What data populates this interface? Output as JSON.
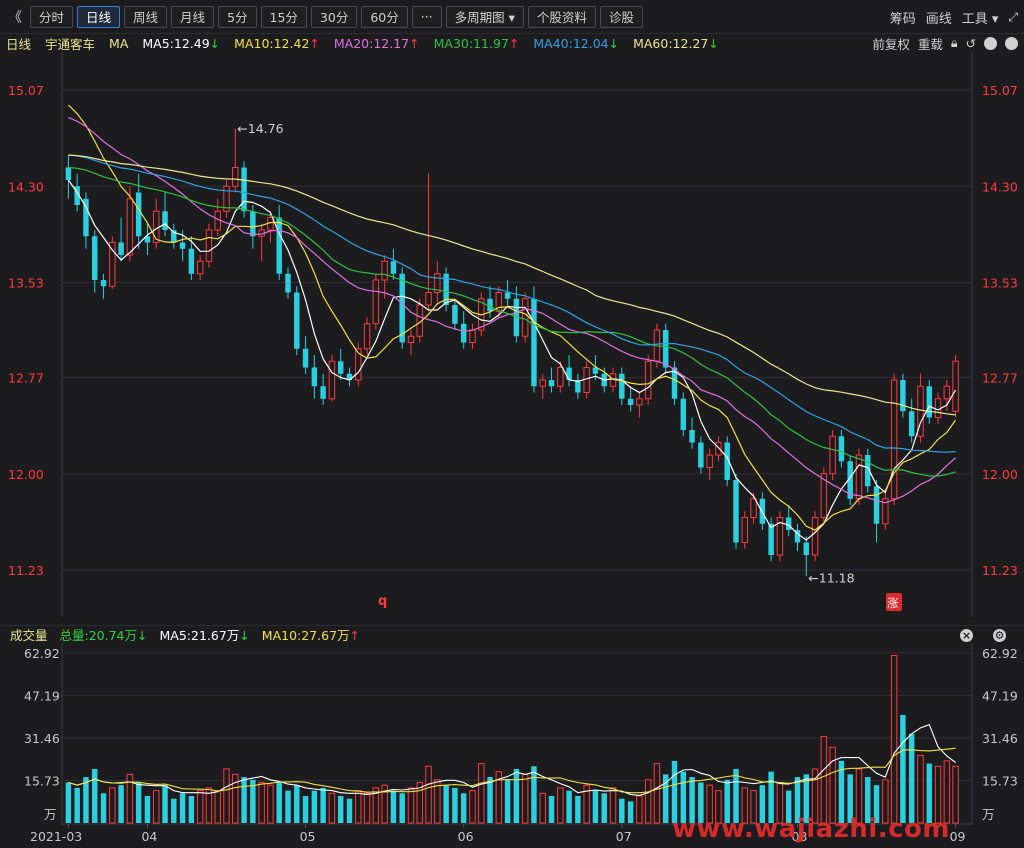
{
  "toolbar": {
    "back": "《",
    "tabs": [
      "分时",
      "日线",
      "周线",
      "月线",
      "5分",
      "15分",
      "30分",
      "60分",
      "···",
      "多周期图 ▾",
      "个股资料",
      "诊股"
    ],
    "active_tab": "日线",
    "right": [
      "筹码",
      "画线",
      "工具 ▾"
    ]
  },
  "info": {
    "period": "日线",
    "stock_name": "宇通客车",
    "indicator": "MA",
    "ma5": "MA5:12.49",
    "ma10": "MA10:12.42",
    "ma20": "MA20:12.17",
    "ma30": "MA30:11.97",
    "ma40": "MA40:12.04",
    "ma60": "MA60:12.27",
    "adjust": "前复权",
    "reload": "重载"
  },
  "volume_info": {
    "label": "成交量",
    "total": "总量:20.74万",
    "ma5": "MA5:21.67万",
    "ma10": "MA10:27.67万"
  },
  "colors": {
    "up": "#ff3a3a",
    "down": "#2ad0e0",
    "ma5": "#ffffff",
    "ma10": "#f0e040",
    "ma20": "#e070e0",
    "ma30": "#30c040",
    "ma40": "#30a0e0",
    "ma60": "#e8e890"
  },
  "chart_data": {
    "type": "candlestick",
    "price_ticks": [
      "15.07",
      "14.30",
      "13.53",
      "12.77",
      "12.00",
      "11.23"
    ],
    "volume_ticks": [
      "62.92",
      "47.19",
      "31.46",
      "15.73"
    ],
    "volume_unit": "万",
    "x_labels": [
      "2021-03",
      "04",
      "05",
      "06",
      "07",
      "08",
      "09"
    ],
    "high_marker": "14.76",
    "low_marker": "11.18",
    "price_range": [
      11.23,
      15.07
    ],
    "volume_range": [
      0,
      62.92
    ],
    "candles": [
      [
        14.45,
        14.55,
        14.2,
        14.35,
        15
      ],
      [
        14.3,
        14.4,
        14.1,
        14.15,
        13
      ],
      [
        14.2,
        14.25,
        13.8,
        13.9,
        17
      ],
      [
        13.9,
        13.95,
        13.45,
        13.55,
        20
      ],
      [
        13.55,
        13.6,
        13.4,
        13.5,
        11
      ],
      [
        13.5,
        13.9,
        13.48,
        13.85,
        13
      ],
      [
        13.85,
        14.05,
        13.7,
        13.75,
        14
      ],
      [
        13.75,
        14.3,
        13.7,
        14.2,
        18
      ],
      [
        14.25,
        14.4,
        13.8,
        13.9,
        15
      ],
      [
        13.9,
        14.0,
        13.75,
        13.85,
        10
      ],
      [
        13.85,
        14.2,
        13.8,
        14.1,
        12
      ],
      [
        14.1,
        14.25,
        13.9,
        13.95,
        14
      ],
      [
        13.95,
        14.0,
        13.8,
        13.85,
        9
      ],
      [
        13.85,
        13.95,
        13.7,
        13.8,
        11
      ],
      [
        13.8,
        13.9,
        13.55,
        13.6,
        10
      ],
      [
        13.6,
        13.75,
        13.55,
        13.7,
        12
      ],
      [
        13.7,
        14.0,
        13.65,
        13.95,
        13
      ],
      [
        13.95,
        14.2,
        13.9,
        14.1,
        12
      ],
      [
        14.1,
        14.35,
        14.05,
        14.3,
        20
      ],
      [
        14.3,
        14.76,
        14.25,
        14.45,
        18
      ],
      [
        14.45,
        14.5,
        14.05,
        14.1,
        17
      ],
      [
        14.1,
        14.15,
        13.8,
        13.9,
        16
      ],
      [
        13.9,
        14.0,
        13.7,
        13.95,
        15
      ],
      [
        13.95,
        14.1,
        13.85,
        14.05,
        14
      ],
      [
        14.05,
        14.15,
        13.55,
        13.6,
        15
      ],
      [
        13.6,
        13.65,
        13.4,
        13.45,
        12
      ],
      [
        13.45,
        13.5,
        12.95,
        13.0,
        14
      ],
      [
        13.0,
        13.1,
        12.8,
        12.85,
        10
      ],
      [
        12.85,
        12.95,
        12.6,
        12.7,
        12
      ],
      [
        12.7,
        12.8,
        12.55,
        12.6,
        13
      ],
      [
        12.6,
        12.95,
        12.58,
        12.9,
        11
      ],
      [
        12.9,
        13.0,
        12.75,
        12.8,
        10
      ],
      [
        12.8,
        12.85,
        12.7,
        12.75,
        9
      ],
      [
        12.75,
        13.05,
        12.7,
        13.0,
        12
      ],
      [
        13.0,
        13.25,
        12.95,
        13.2,
        11
      ],
      [
        13.2,
        13.6,
        13.15,
        13.55,
        13
      ],
      [
        13.55,
        13.75,
        13.4,
        13.7,
        14
      ],
      [
        13.7,
        13.8,
        13.55,
        13.6,
        12
      ],
      [
        13.6,
        13.65,
        13.0,
        13.05,
        11
      ],
      [
        13.05,
        13.15,
        12.95,
        13.1,
        13
      ],
      [
        13.1,
        13.4,
        13.05,
        13.35,
        15
      ],
      [
        13.35,
        14.4,
        13.3,
        13.45,
        21
      ],
      [
        13.45,
        13.7,
        13.35,
        13.6,
        16
      ],
      [
        13.6,
        13.65,
        13.3,
        13.35,
        14
      ],
      [
        13.35,
        13.4,
        13.15,
        13.2,
        13
      ],
      [
        13.2,
        13.3,
        13.0,
        13.05,
        11
      ],
      [
        13.05,
        13.2,
        13.0,
        13.15,
        12
      ],
      [
        13.15,
        13.45,
        13.1,
        13.4,
        22
      ],
      [
        13.4,
        13.5,
        13.25,
        13.3,
        17
      ],
      [
        13.3,
        13.5,
        13.25,
        13.45,
        19
      ],
      [
        13.45,
        13.55,
        13.35,
        13.4,
        16
      ],
      [
        13.4,
        13.5,
        13.05,
        13.1,
        20
      ],
      [
        13.1,
        13.45,
        13.05,
        13.4,
        18
      ],
      [
        13.4,
        13.5,
        12.65,
        12.7,
        21
      ],
      [
        12.7,
        12.8,
        12.6,
        12.75,
        11
      ],
      [
        12.75,
        12.85,
        12.65,
        12.7,
        10
      ],
      [
        12.7,
        12.9,
        12.65,
        12.85,
        13
      ],
      [
        12.85,
        12.95,
        12.7,
        12.75,
        12
      ],
      [
        12.75,
        12.8,
        12.6,
        12.65,
        10
      ],
      [
        12.65,
        12.9,
        12.6,
        12.85,
        14
      ],
      [
        12.85,
        12.95,
        12.75,
        12.8,
        12
      ],
      [
        12.8,
        12.85,
        12.65,
        12.7,
        11
      ],
      [
        12.7,
        12.85,
        12.65,
        12.8,
        13
      ],
      [
        12.8,
        12.85,
        12.55,
        12.6,
        9
      ],
      [
        12.6,
        12.7,
        12.5,
        12.55,
        8
      ],
      [
        12.55,
        12.65,
        12.45,
        12.6,
        10
      ],
      [
        12.6,
        12.95,
        12.55,
        12.9,
        16
      ],
      [
        12.9,
        13.2,
        12.85,
        13.15,
        22
      ],
      [
        13.15,
        13.2,
        12.8,
        12.85,
        18
      ],
      [
        12.85,
        12.9,
        12.55,
        12.6,
        23
      ],
      [
        12.6,
        12.65,
        12.3,
        12.35,
        19
      ],
      [
        12.35,
        12.45,
        12.2,
        12.25,
        17
      ],
      [
        12.25,
        12.3,
        12.0,
        12.05,
        15
      ],
      [
        12.05,
        12.2,
        11.95,
        12.15,
        14
      ],
      [
        12.15,
        12.3,
        12.1,
        12.25,
        12
      ],
      [
        12.25,
        12.3,
        11.9,
        11.95,
        16
      ],
      [
        11.95,
        12.0,
        11.4,
        11.45,
        20
      ],
      [
        11.45,
        11.7,
        11.4,
        11.65,
        13
      ],
      [
        11.65,
        11.85,
        11.6,
        11.8,
        12
      ],
      [
        11.8,
        11.85,
        11.55,
        11.6,
        14
      ],
      [
        11.6,
        11.65,
        11.3,
        11.35,
        19
      ],
      [
        11.35,
        11.7,
        11.3,
        11.65,
        15
      ],
      [
        11.65,
        11.75,
        11.5,
        11.55,
        12
      ],
      [
        11.55,
        11.6,
        11.38,
        11.45,
        17
      ],
      [
        11.45,
        11.5,
        11.18,
        11.35,
        18
      ],
      [
        11.35,
        11.7,
        11.3,
        11.65,
        20
      ],
      [
        11.65,
        12.05,
        11.6,
        12.0,
        32
      ],
      [
        12.0,
        12.35,
        11.95,
        12.3,
        28
      ],
      [
        12.3,
        12.35,
        12.05,
        12.1,
        23
      ],
      [
        12.1,
        12.15,
        11.75,
        11.8,
        18
      ],
      [
        11.8,
        12.2,
        11.75,
        12.15,
        20
      ],
      [
        12.15,
        12.2,
        11.85,
        11.9,
        17
      ],
      [
        11.9,
        11.95,
        11.45,
        11.6,
        14
      ],
      [
        11.6,
        11.85,
        11.55,
        11.8,
        16
      ],
      [
        11.8,
        12.8,
        11.75,
        12.75,
        62
      ],
      [
        12.75,
        12.8,
        12.45,
        12.5,
        40
      ],
      [
        12.5,
        12.6,
        12.25,
        12.3,
        33
      ],
      [
        12.3,
        12.8,
        12.25,
        12.7,
        25
      ],
      [
        12.7,
        12.75,
        12.4,
        12.45,
        22
      ],
      [
        12.45,
        12.65,
        12.4,
        12.6,
        21
      ],
      [
        12.6,
        12.75,
        12.5,
        12.7,
        23
      ],
      [
        12.5,
        12.95,
        12.45,
        12.9,
        21
      ]
    ]
  },
  "watermark": "www.wajiazhi.com"
}
